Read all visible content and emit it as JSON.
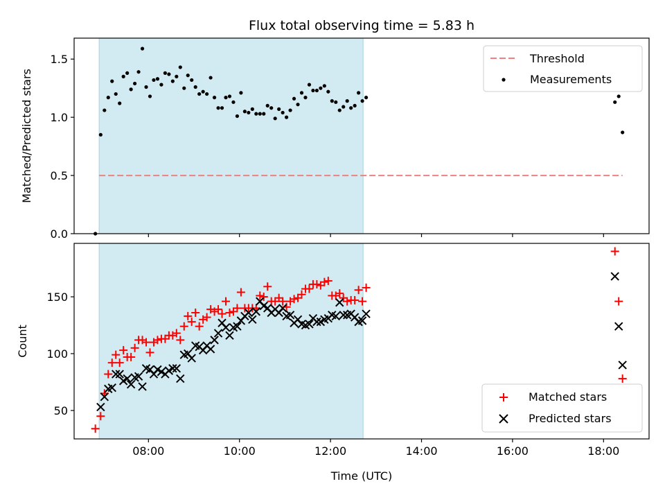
{
  "chart_data": [
    {
      "type": "scatter",
      "title": "Flux total observing time = 5.83 h",
      "ylabel": "Matched/Predicted stars",
      "xlim": [
        "06:22",
        "19:00"
      ],
      "ylim": [
        0,
        1.68
      ],
      "yticks": [
        0.0,
        0.5,
        1.0,
        1.5
      ],
      "ytick_labels": [
        "0.0",
        "0.5",
        "1.0",
        "1.5"
      ],
      "grid": false,
      "legend_position": "top-right",
      "shaded_interval": [
        "06:55",
        "12:43"
      ],
      "shade_color": "#add8e6",
      "threshold": {
        "name": "Threshold",
        "value": 0.5,
        "x_range": [
          "06:55",
          "18:25"
        ],
        "color": "#f08080",
        "style": "dashed"
      },
      "series": [
        {
          "name": "Measurements",
          "marker": "dot",
          "color": "#000000",
          "points": [
            [
              "06:50",
              0.0
            ],
            [
              "06:57",
              0.85
            ],
            [
              "07:02",
              1.06
            ],
            [
              "07:07",
              1.17
            ],
            [
              "07:12",
              1.31
            ],
            [
              "07:17",
              1.2
            ],
            [
              "07:22",
              1.12
            ],
            [
              "07:27",
              1.35
            ],
            [
              "07:32",
              1.38
            ],
            [
              "07:37",
              1.24
            ],
            [
              "07:42",
              1.29
            ],
            [
              "07:47",
              1.39
            ],
            [
              "07:52",
              1.59
            ],
            [
              "07:57",
              1.26
            ],
            [
              "08:02",
              1.18
            ],
            [
              "08:07",
              1.32
            ],
            [
              "08:12",
              1.33
            ],
            [
              "08:17",
              1.28
            ],
            [
              "08:22",
              1.38
            ],
            [
              "08:27",
              1.37
            ],
            [
              "08:32",
              1.31
            ],
            [
              "08:37",
              1.35
            ],
            [
              "08:42",
              1.43
            ],
            [
              "08:47",
              1.25
            ],
            [
              "08:52",
              1.36
            ],
            [
              "08:57",
              1.32
            ],
            [
              "09:02",
              1.26
            ],
            [
              "09:07",
              1.2
            ],
            [
              "09:12",
              1.22
            ],
            [
              "09:17",
              1.2
            ],
            [
              "09:22",
              1.34
            ],
            [
              "09:27",
              1.17
            ],
            [
              "09:32",
              1.08
            ],
            [
              "09:37",
              1.08
            ],
            [
              "09:42",
              1.17
            ],
            [
              "09:47",
              1.18
            ],
            [
              "09:52",
              1.13
            ],
            [
              "09:57",
              1.01
            ],
            [
              "10:02",
              1.21
            ],
            [
              "10:07",
              1.05
            ],
            [
              "10:12",
              1.04
            ],
            [
              "10:17",
              1.07
            ],
            [
              "10:22",
              1.03
            ],
            [
              "10:27",
              1.03
            ],
            [
              "10:32",
              1.03
            ],
            [
              "10:37",
              1.1
            ],
            [
              "10:42",
              1.08
            ],
            [
              "10:47",
              0.99
            ],
            [
              "10:52",
              1.07
            ],
            [
              "10:57",
              1.04
            ],
            [
              "11:02",
              1.0
            ],
            [
              "11:07",
              1.06
            ],
            [
              "11:12",
              1.16
            ],
            [
              "11:17",
              1.11
            ],
            [
              "11:22",
              1.21
            ],
            [
              "11:27",
              1.17
            ],
            [
              "11:32",
              1.28
            ],
            [
              "11:37",
              1.23
            ],
            [
              "11:42",
              1.23
            ],
            [
              "11:47",
              1.25
            ],
            [
              "11:52",
              1.27
            ],
            [
              "11:57",
              1.22
            ],
            [
              "12:02",
              1.14
            ],
            [
              "12:07",
              1.13
            ],
            [
              "12:12",
              1.06
            ],
            [
              "12:17",
              1.09
            ],
            [
              "12:22",
              1.14
            ],
            [
              "12:27",
              1.08
            ],
            [
              "12:32",
              1.1
            ],
            [
              "12:37",
              1.21
            ],
            [
              "12:42",
              1.14
            ],
            [
              "12:47",
              1.17
            ],
            [
              "18:15",
              1.13
            ],
            [
              "18:20",
              1.18
            ],
            [
              "18:25",
              0.87
            ]
          ]
        }
      ]
    },
    {
      "type": "scatter",
      "xlabel": "Time (UTC)",
      "ylabel": "Count",
      "xlim": [
        "06:22",
        "19:00"
      ],
      "ylim": [
        25,
        197
      ],
      "yticks": [
        50,
        100,
        150
      ],
      "ytick_labels": [
        "50",
        "100",
        "150"
      ],
      "xticks": [
        "08:00",
        "10:00",
        "12:00",
        "14:00",
        "16:00",
        "18:00"
      ],
      "grid": false,
      "legend_position": "bottom-right",
      "shaded_interval": [
        "06:55",
        "12:43"
      ],
      "shade_color": "#add8e6",
      "series": [
        {
          "name": "Matched stars",
          "marker": "plus",
          "color": "#ff0000",
          "points": [
            [
              "06:50",
              34
            ],
            [
              "06:57",
              45
            ],
            [
              "07:02",
              65
            ],
            [
              "07:07",
              82
            ],
            [
              "07:12",
              92
            ],
            [
              "07:17",
              99
            ],
            [
              "07:22",
              92
            ],
            [
              "07:27",
              103
            ],
            [
              "07:32",
              97
            ],
            [
              "07:37",
              97
            ],
            [
              "07:42",
              105
            ],
            [
              "07:47",
              112
            ],
            [
              "07:52",
              112
            ],
            [
              "07:57",
              110
            ],
            [
              "08:02",
              101
            ],
            [
              "08:07",
              110
            ],
            [
              "08:12",
              112
            ],
            [
              "08:17",
              113
            ],
            [
              "08:22",
              113
            ],
            [
              "08:27",
              116
            ],
            [
              "08:32",
              116
            ],
            [
              "08:37",
              118
            ],
            [
              "08:42",
              112
            ],
            [
              "08:47",
              124
            ],
            [
              "08:52",
              133
            ],
            [
              "08:57",
              128
            ],
            [
              "09:02",
              136
            ],
            [
              "09:07",
              124
            ],
            [
              "09:12",
              130
            ],
            [
              "09:17",
              132
            ],
            [
              "09:22",
              139
            ],
            [
              "09:27",
              137
            ],
            [
              "09:32",
              139
            ],
            [
              "09:37",
              135
            ],
            [
              "09:42",
              146
            ],
            [
              "09:47",
              136
            ],
            [
              "09:52",
              137
            ],
            [
              "09:57",
              140
            ],
            [
              "10:02",
              154
            ],
            [
              "10:07",
              140
            ],
            [
              "10:12",
              140
            ],
            [
              "10:17",
              140
            ],
            [
              "10:22",
              140
            ],
            [
              "10:27",
              151
            ],
            [
              "10:32",
              150
            ],
            [
              "10:37",
              159
            ],
            [
              "10:42",
              146
            ],
            [
              "10:47",
              146
            ],
            [
              "10:52",
              149
            ],
            [
              "10:57",
              146
            ],
            [
              "11:02",
              141
            ],
            [
              "11:07",
              146
            ],
            [
              "11:12",
              148
            ],
            [
              "11:17",
              149
            ],
            [
              "11:22",
              152
            ],
            [
              "11:27",
              157
            ],
            [
              "11:32",
              157
            ],
            [
              "11:37",
              161
            ],
            [
              "11:42",
              161
            ],
            [
              "11:47",
              160
            ],
            [
              "11:52",
              163
            ],
            [
              "11:57",
              164
            ],
            [
              "12:02",
              151
            ],
            [
              "12:07",
              151
            ],
            [
              "12:12",
              153
            ],
            [
              "12:17",
              149
            ],
            [
              "12:22",
              146
            ],
            [
              "12:27",
              147
            ],
            [
              "12:32",
              147
            ],
            [
              "12:37",
              156
            ],
            [
              "12:42",
              146
            ],
            [
              "12:47",
              158
            ],
            [
              "18:15",
              190
            ],
            [
              "18:20",
              146
            ],
            [
              "18:25",
              78
            ]
          ]
        },
        {
          "name": "Predicted stars",
          "marker": "x",
          "color": "#000000",
          "points": [
            [
              "06:57",
              53
            ],
            [
              "07:02",
              62
            ],
            [
              "07:07",
              69
            ],
            [
              "07:12",
              70
            ],
            [
              "07:17",
              82
            ],
            [
              "07:22",
              82
            ],
            [
              "07:27",
              76
            ],
            [
              "07:32",
              78
            ],
            [
              "07:37",
              73
            ],
            [
              "07:42",
              79
            ],
            [
              "07:47",
              80
            ],
            [
              "07:52",
              71
            ],
            [
              "07:57",
              87
            ],
            [
              "08:02",
              86
            ],
            [
              "08:07",
              82
            ],
            [
              "08:12",
              86
            ],
            [
              "08:17",
              84
            ],
            [
              "08:22",
              82
            ],
            [
              "08:27",
              85
            ],
            [
              "08:32",
              87
            ],
            [
              "08:37",
              87
            ],
            [
              "08:42",
              78
            ],
            [
              "08:47",
              99
            ],
            [
              "08:52",
              100
            ],
            [
              "08:57",
              96
            ],
            [
              "09:02",
              107
            ],
            [
              "09:07",
              106
            ],
            [
              "09:12",
              103
            ],
            [
              "09:17",
              107
            ],
            [
              "09:22",
              104
            ],
            [
              "09:27",
              112
            ],
            [
              "09:32",
              118
            ],
            [
              "09:37",
              127
            ],
            [
              "09:42",
              123
            ],
            [
              "09:47",
              116
            ],
            [
              "09:52",
              123
            ],
            [
              "09:57",
              124
            ],
            [
              "10:02",
              129
            ],
            [
              "10:07",
              133
            ],
            [
              "10:12",
              136
            ],
            [
              "10:17",
              130
            ],
            [
              "10:22",
              137
            ],
            [
              "10:27",
              146
            ],
            [
              "10:32",
              142
            ],
            [
              "10:37",
              140
            ],
            [
              "10:42",
              136
            ],
            [
              "10:47",
              139
            ],
            [
              "10:52",
              136
            ],
            [
              "10:57",
              140
            ],
            [
              "11:02",
              133
            ],
            [
              "11:07",
              134
            ],
            [
              "11:12",
              127
            ],
            [
              "11:17",
              130
            ],
            [
              "11:22",
              126
            ],
            [
              "11:27",
              125
            ],
            [
              "11:32",
              126
            ],
            [
              "11:37",
              131
            ],
            [
              "11:42",
              128
            ],
            [
              "11:47",
              128
            ],
            [
              "11:52",
              130
            ],
            [
              "11:57",
              131
            ],
            [
              "12:02",
              134
            ],
            [
              "12:07",
              133
            ],
            [
              "12:12",
              145
            ],
            [
              "12:17",
              134
            ],
            [
              "12:22",
              134
            ],
            [
              "12:27",
              135
            ],
            [
              "12:32",
              132
            ],
            [
              "12:37",
              128
            ],
            [
              "12:42",
              129
            ],
            [
              "12:47",
              135
            ],
            [
              "18:15",
              168
            ],
            [
              "18:20",
              124
            ],
            [
              "18:25",
              90
            ]
          ]
        }
      ]
    }
  ]
}
